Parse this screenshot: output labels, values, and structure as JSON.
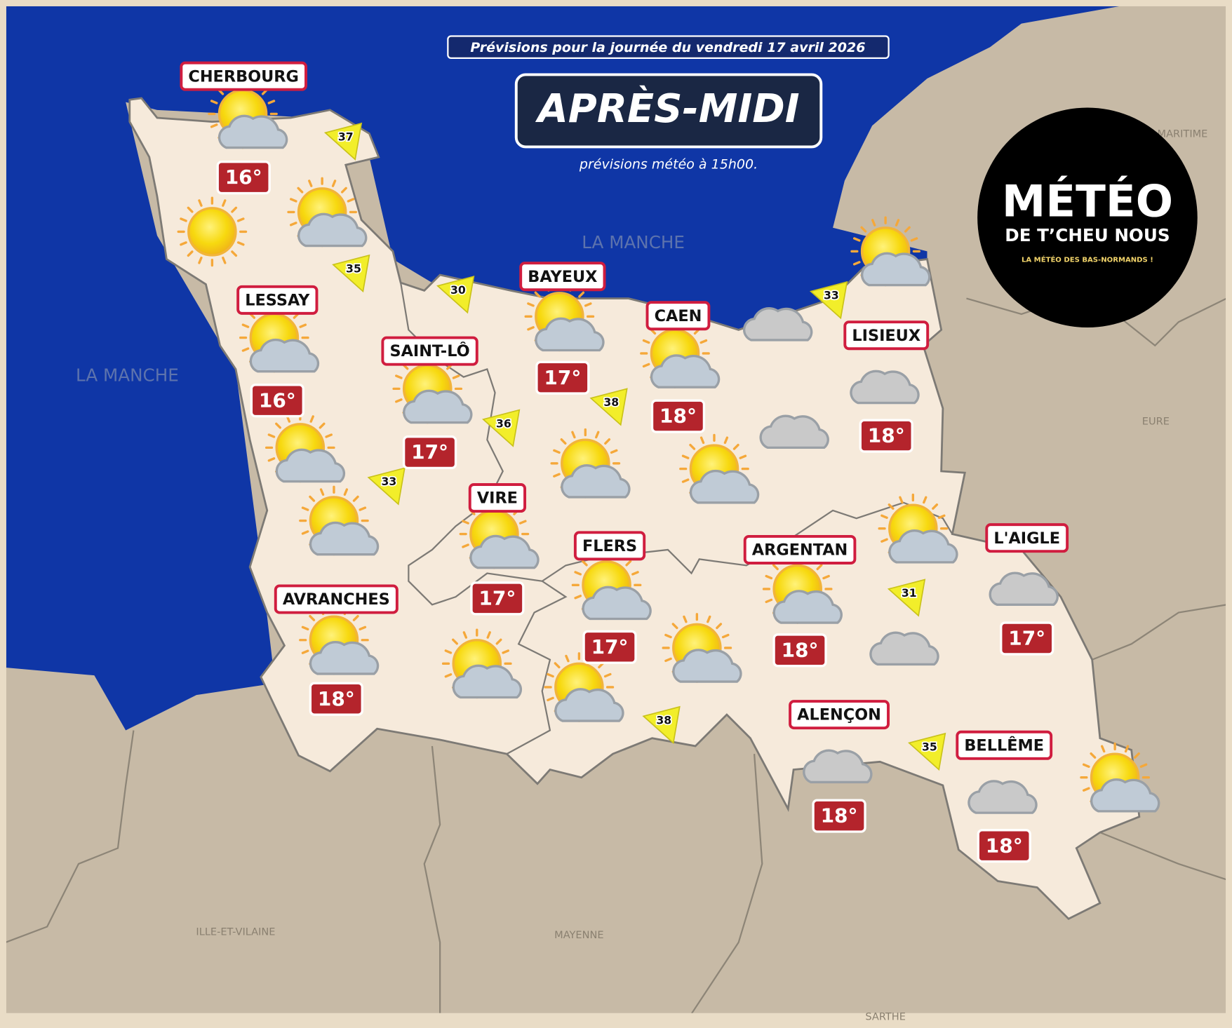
{
  "header": {
    "date_line": "Prévisions pour la journée du vendredi 17 avril 2026",
    "title": "APRÈS-MIDI",
    "subtitle": "prévisions météo à 15h00."
  },
  "logo": {
    "name": "MÉTÉO",
    "line2": "DE T’CHEU NOUS",
    "tagline": "LA MÉTÉO DES BAS-NORMANDS !"
  },
  "map_labels": {
    "seas": [
      "LA MANCHE",
      "LA MANCHE"
    ],
    "departments": [
      "MARITIME",
      "EURE",
      "ILLE-ET-VILAINE",
      "MAYENNE",
      "SARTHE"
    ]
  },
  "cities": [
    {
      "name": "CHERBOURG",
      "temperature": "16°"
    },
    {
      "name": "LESSAY",
      "temperature": "16°"
    },
    {
      "name": "SAINT-LÔ",
      "temperature": "17°"
    },
    {
      "name": "BAYEUX",
      "temperature": "17°"
    },
    {
      "name": "CAEN",
      "temperature": "18°"
    },
    {
      "name": "LISIEUX",
      "temperature": "18°"
    },
    {
      "name": "VIRE",
      "temperature": "17°"
    },
    {
      "name": "FLERS",
      "temperature": "17°"
    },
    {
      "name": "ARGENTAN",
      "temperature": "18°"
    },
    {
      "name": "L'AIGLE",
      "temperature": "17°"
    },
    {
      "name": "AVRANCHES",
      "temperature": "18°"
    },
    {
      "name": "ALENÇON",
      "temperature": "18°"
    },
    {
      "name": "BELLÊME",
      "temperature": "18°"
    }
  ],
  "winds": [
    37,
    35,
    30,
    36,
    33,
    38,
    33,
    31,
    38,
    35
  ]
}
